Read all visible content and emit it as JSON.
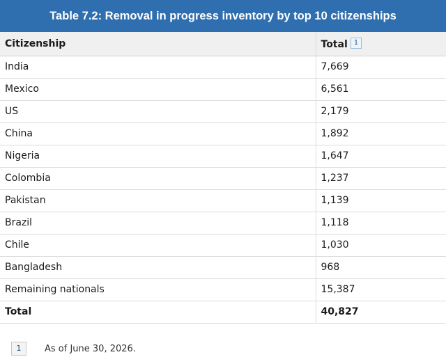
{
  "title": "Table 7.2: Removal in progress inventory by top 10 citizenships",
  "table": {
    "headers": [
      "Citizenship",
      "Total"
    ],
    "header_footnote_ref": "1",
    "rows": [
      {
        "citizenship": "India",
        "total": "7,669"
      },
      {
        "citizenship": "Mexico",
        "total": "6,561"
      },
      {
        "citizenship": "US",
        "total": "2,179"
      },
      {
        "citizenship": "China",
        "total": "1,892"
      },
      {
        "citizenship": "Nigeria",
        "total": "1,647"
      },
      {
        "citizenship": "Colombia",
        "total": "1,237"
      },
      {
        "citizenship": "Pakistan",
        "total": "1,139"
      },
      {
        "citizenship": "Brazil",
        "total": "1,118"
      },
      {
        "citizenship": "Chile",
        "total": "1,030"
      },
      {
        "citizenship": "Bangladesh",
        "total": "968"
      },
      {
        "citizenship": "Remaining nationals",
        "total": "15,387"
      }
    ],
    "total_row": {
      "label": "Total",
      "value": "40,827"
    }
  },
  "footnote": {
    "ref": "1",
    "text": "As of June 30, 2026."
  }
}
